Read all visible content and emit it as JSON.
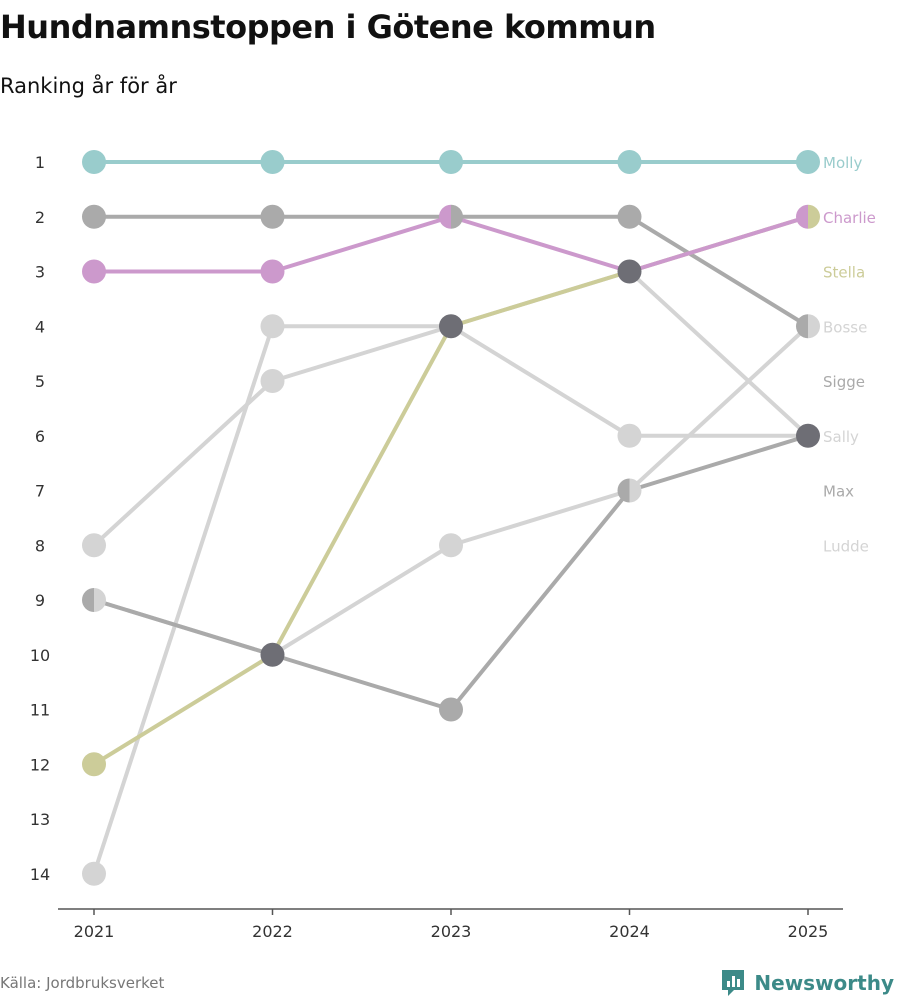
{
  "title": "Hundnamnstoppen i Götene kommun",
  "subtitle": "Ranking år för år",
  "source": "Källa: Jordbruksverket",
  "brand": "Newsworthy",
  "colors": {
    "brand": "#3c8a88",
    "axis": "#555555"
  },
  "chart_data": {
    "type": "line",
    "title": "Hundnamnstoppen i Götene kommun",
    "subtitle": "Ranking år för år",
    "x": [
      "2021",
      "2022",
      "2023",
      "2024",
      "2025"
    ],
    "y_ticks": [
      "1",
      "2",
      "3",
      "4",
      "5",
      "6",
      "7",
      "8",
      "9",
      "10",
      "11",
      "12",
      "13",
      "14"
    ],
    "ylim": [
      1,
      14
    ],
    "y_reversed": true,
    "xlabel": "",
    "ylabel": "",
    "series": [
      {
        "name": "Molly",
        "color": "#99cccc",
        "values": [
          1,
          1,
          1,
          1,
          1
        ]
      },
      {
        "name": "Charlie",
        "color": "#cc99cc",
        "values": [
          3,
          3,
          2,
          3,
          2
        ]
      },
      {
        "name": "Stella",
        "color": "#cccc99",
        "values": [
          12,
          10,
          4,
          3,
          2
        ]
      },
      {
        "name": "Bosse",
        "color": "#d4d4d4",
        "values": [
          14,
          4,
          4,
          6,
          6
        ]
      },
      {
        "name": "Sigge",
        "color": "#aaaaaa",
        "values": [
          2,
          2,
          2,
          2,
          4
        ]
      },
      {
        "name": "Sally",
        "color": "#d4d4d4",
        "values": [
          8,
          5,
          4,
          3,
          6
        ]
      },
      {
        "name": "Max",
        "color": "#aaaaaa",
        "values": [
          9,
          10,
          11,
          7,
          6
        ]
      },
      {
        "name": "Ludde",
        "color": "#d4d4d4",
        "values": [
          9,
          10,
          8,
          7,
          4
        ]
      }
    ],
    "label_order": [
      "Molly",
      "Charlie",
      "Stella",
      "Bosse",
      "Sigge",
      "Sally",
      "Max",
      "Ludde"
    ],
    "overlap_color": "#6e6e75"
  }
}
